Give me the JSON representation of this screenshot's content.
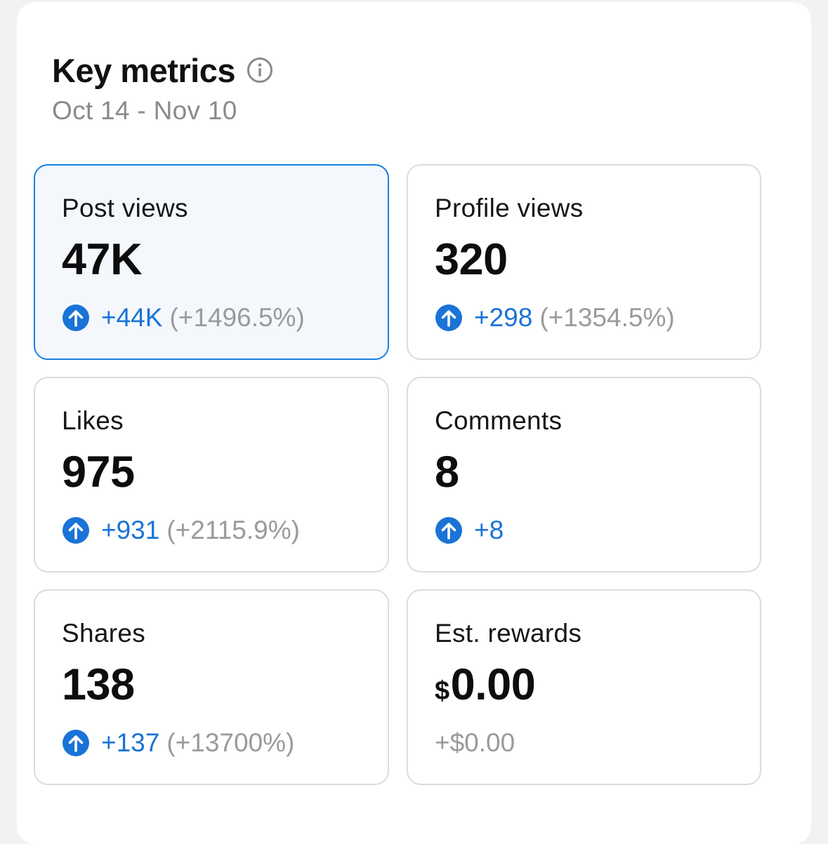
{
  "header": {
    "title": "Key metrics",
    "date_range": "Oct 14 - Nov 10"
  },
  "colors": {
    "accent": "#1a73d6",
    "selected_border": "#1a7fe0",
    "selected_bg": "#f4f8fd",
    "muted": "#9a9a9a"
  },
  "metrics": [
    {
      "label": "Post views",
      "value": "47K",
      "delta": "+44K",
      "pct": "(+1496.5%)",
      "icon": "arrow-up-circle-icon",
      "selected": true
    },
    {
      "label": "Profile views",
      "value": "320",
      "delta": "+298",
      "pct": "(+1354.5%)",
      "icon": "arrow-up-circle-icon"
    },
    {
      "label": "Likes",
      "value": "975",
      "delta": "+931",
      "pct": "(+2115.9%)",
      "icon": "arrow-up-circle-icon"
    },
    {
      "label": "Comments",
      "value": "8",
      "delta": "+8",
      "pct": "",
      "icon": "arrow-up-circle-icon"
    },
    {
      "label": "Shares",
      "value": "138",
      "delta": "+137",
      "pct": "(+13700%)",
      "icon": "arrow-up-circle-icon"
    },
    {
      "label": "Est. rewards",
      "currency": "$",
      "value": "0.00",
      "delta": "+$0.00",
      "pct": ""
    }
  ]
}
